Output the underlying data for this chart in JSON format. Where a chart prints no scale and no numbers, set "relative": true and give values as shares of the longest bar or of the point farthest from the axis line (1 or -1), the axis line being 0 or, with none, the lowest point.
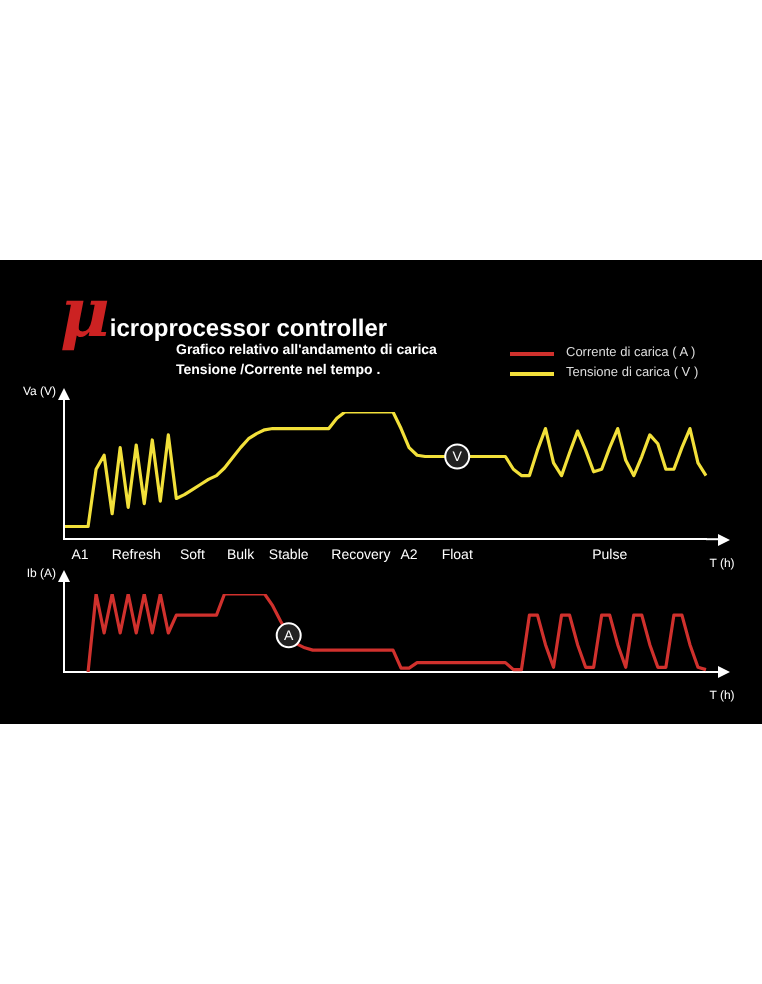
{
  "chart_data": [
    {
      "type": "line",
      "title": "μicroprocessor controller",
      "subtitle": "Grafico relativo all'andamento di carica\nTensione /Corrente nel tempo .",
      "ylabel": "Va (V)",
      "xlabel": "T (h)",
      "relative": true,
      "legend": "top right",
      "annotations": [
        {
          "text": "V",
          "x": "Float",
          "y": 0.65
        }
      ],
      "categories": [
        null,
        null,
        "A1",
        null,
        null,
        null,
        null,
        null,
        null,
        "Refresh",
        null,
        null,
        null,
        null,
        null,
        null,
        "Soft",
        null,
        null,
        null,
        null,
        null,
        "Bulk",
        null,
        null,
        null,
        null,
        null,
        "Stable",
        null,
        null,
        null,
        null,
        null,
        null,
        null,
        null,
        "Recovery",
        null,
        null,
        null,
        null,
        null,
        "A2",
        null,
        null,
        null,
        null,
        null,
        "Float",
        null,
        null,
        null,
        null,
        null,
        null,
        null,
        null,
        null,
        null,
        null,
        null,
        null,
        null,
        null,
        null,
        null,
        null,
        "Pulse",
        null,
        null,
        null,
        null,
        null,
        null,
        null,
        null,
        null,
        null,
        null,
        null
      ],
      "series": [
        {
          "name": "Tensione di carica ( V )",
          "color": "#f2e03a",
          "values": [
            0.1,
            0.1,
            0.1,
            0.1,
            0.55,
            0.66,
            0.2,
            0.72,
            0.25,
            0.74,
            0.28,
            0.78,
            0.3,
            0.82,
            0.32,
            0.35,
            0.39,
            0.43,
            0.47,
            0.5,
            0.56,
            0.64,
            0.72,
            0.79,
            0.83,
            0.86,
            0.87,
            0.87,
            0.87,
            0.87,
            0.87,
            0.87,
            0.87,
            0.87,
            0.95,
            1,
            1,
            1,
            1,
            1,
            1,
            1,
            0.87,
            0.72,
            0.66,
            0.65,
            0.65,
            0.65,
            0.65,
            0.65,
            0.65,
            0.65,
            0.65,
            0.65,
            0.65,
            0.65,
            0.55,
            0.5,
            0.5,
            0.7,
            0.87,
            0.6,
            0.5,
            0.68,
            0.85,
            0.7,
            0.53,
            0.55,
            0.72,
            0.87,
            0.62,
            0.5,
            0.65,
            0.82,
            0.75,
            0.55,
            0.55,
            0.72,
            0.87,
            0.6,
            0.5
          ]
        }
      ]
    },
    {
      "type": "line",
      "ylabel": "Ib (A)",
      "xlabel": "T (h)",
      "relative": true,
      "legend": "top right",
      "tick_labels": false,
      "annotations": [
        {
          "text": "A",
          "x": "Stable",
          "y": 0.47
        }
      ],
      "categories": [
        null,
        null,
        "A1",
        null,
        null,
        null,
        null,
        null,
        null,
        "Refresh",
        null,
        null,
        null,
        null,
        null,
        null,
        "Soft",
        null,
        null,
        null,
        null,
        null,
        "Bulk",
        null,
        null,
        null,
        null,
        null,
        "Stable",
        null,
        null,
        null,
        null,
        null,
        null,
        null,
        null,
        "Recovery",
        null,
        null,
        null,
        null,
        null,
        "A2",
        null,
        null,
        null,
        null,
        null,
        "Float",
        null,
        null,
        null,
        null,
        null,
        null,
        null,
        null,
        null,
        null,
        null,
        null,
        null,
        null,
        null,
        null,
        null,
        null,
        "Pulse",
        null,
        null,
        null,
        null,
        null,
        null,
        null,
        null,
        null,
        null,
        null,
        null
      ],
      "series": [
        {
          "name": "Corrente di carica ( A )",
          "color": "#d0312d",
          "values": [
            null,
            null,
            null,
            0,
            1,
            0.5,
            1,
            0.5,
            1,
            0.5,
            1,
            0.5,
            1,
            0.5,
            0.73,
            0.73,
            0.73,
            0.73,
            0.73,
            0.73,
            1,
            1,
            1,
            1,
            1,
            1,
            0.85,
            0.65,
            0.47,
            0.36,
            0.31,
            0.28,
            0.28,
            0.28,
            0.28,
            0.28,
            0.28,
            0.28,
            0.28,
            0.28,
            0.28,
            0.28,
            0.05,
            0.05,
            0.12,
            0.12,
            0.12,
            0.12,
            0.12,
            0.12,
            0.12,
            0.12,
            0.12,
            0.12,
            0.12,
            0.12,
            0.03,
            0.03,
            0.73,
            0.73,
            0.35,
            0.06,
            0.73,
            0.73,
            0.35,
            0.06,
            0.06,
            0.73,
            0.73,
            0.35,
            0.06,
            0.73,
            0.73,
            0.35,
            0.06,
            0.06,
            0.73,
            0.73,
            0.35,
            0.06,
            0.03
          ]
        }
      ]
    }
  ]
}
